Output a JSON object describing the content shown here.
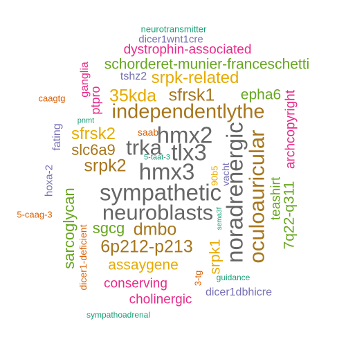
{
  "palette": {
    "teal": "#1b9e77",
    "orange": "#d95f02",
    "purple": "#7570b3",
    "magenta": "#e7298a",
    "green": "#66a61e",
    "gold": "#e6ab02",
    "brown": "#a6761d",
    "gray": "#666666"
  },
  "words": [
    {
      "text": "neurotransmitter",
      "color": "#1b9e77"
    },
    {
      "text": "dicer1wnt1cre",
      "color": "#7570b3"
    },
    {
      "text": "dystrophin-associated",
      "color": "#e7298a"
    },
    {
      "text": "schorderet-munier-franceschetti",
      "color": "#66a61e"
    },
    {
      "text": "tshz2",
      "color": "#7570b3"
    },
    {
      "text": "srpk-related",
      "color": "#e6ab02"
    },
    {
      "text": "ganglia",
      "color": "#e7298a"
    },
    {
      "text": "caagtg",
      "color": "#d95f02"
    },
    {
      "text": "35kda",
      "color": "#e6ab02"
    },
    {
      "text": "sfrsk1",
      "color": "#a6761d"
    },
    {
      "text": "epha6",
      "color": "#66a61e"
    },
    {
      "text": "archcopyright",
      "color": "#e7298a"
    },
    {
      "text": "ptpro",
      "color": "#e7298a"
    },
    {
      "text": "independentlythe",
      "color": "#a6761d"
    },
    {
      "text": "pnmt",
      "color": "#1b9e77"
    },
    {
      "text": "hmx2",
      "color": "#666666"
    },
    {
      "text": "noradrenergic",
      "color": "#666666"
    },
    {
      "text": "oculoauricular",
      "color": "#a6761d"
    },
    {
      "text": "sfrsk2",
      "color": "#e6ab02"
    },
    {
      "text": "saab",
      "color": "#d95f02"
    },
    {
      "text": "fating",
      "color": "#7570b3"
    },
    {
      "text": "slc6a9",
      "color": "#a6761d"
    },
    {
      "text": "trka",
      "color": "#666666"
    },
    {
      "text": "tlx3",
      "color": "#666666"
    },
    {
      "text": "5-taat-3",
      "color": "#1b9e77"
    },
    {
      "text": "teashirt",
      "color": "#66a61e"
    },
    {
      "text": "7q22-q311",
      "color": "#66a61e"
    },
    {
      "text": "srpk2",
      "color": "#a6761d"
    },
    {
      "text": "hmx3",
      "color": "#666666"
    },
    {
      "text": "90b5",
      "color": "#e6ab02"
    },
    {
      "text": "vacht",
      "color": "#7570b3"
    },
    {
      "text": "hoxa-2",
      "color": "#7570b3"
    },
    {
      "text": "sympathetic",
      "color": "#666666"
    },
    {
      "text": "5-caag-3",
      "color": "#d95f02"
    },
    {
      "text": "neuroblasts",
      "color": "#666666"
    },
    {
      "text": "sarcoglycan",
      "color": "#66a61e"
    },
    {
      "text": "sema3f",
      "color": "#1b9e77"
    },
    {
      "text": "sgcg",
      "color": "#66a61e"
    },
    {
      "text": "dmbo",
      "color": "#a6761d"
    },
    {
      "text": "dicer1-deficient",
      "color": "#d95f02"
    },
    {
      "text": "6p212-p213",
      "color": "#a6761d"
    },
    {
      "text": "srpk1",
      "color": "#e6ab02"
    },
    {
      "text": "assaygene",
      "color": "#e6ab02"
    },
    {
      "text": "3-tg",
      "color": "#d95f02"
    },
    {
      "text": "guidance",
      "color": "#1b9e77"
    },
    {
      "text": "conserving",
      "color": "#e7298a"
    },
    {
      "text": "dicer1dbhicre",
      "color": "#7570b3"
    },
    {
      "text": "cholinergic",
      "color": "#e7298a"
    },
    {
      "text": "sympathoadrenal",
      "color": "#1b9e77"
    }
  ]
}
